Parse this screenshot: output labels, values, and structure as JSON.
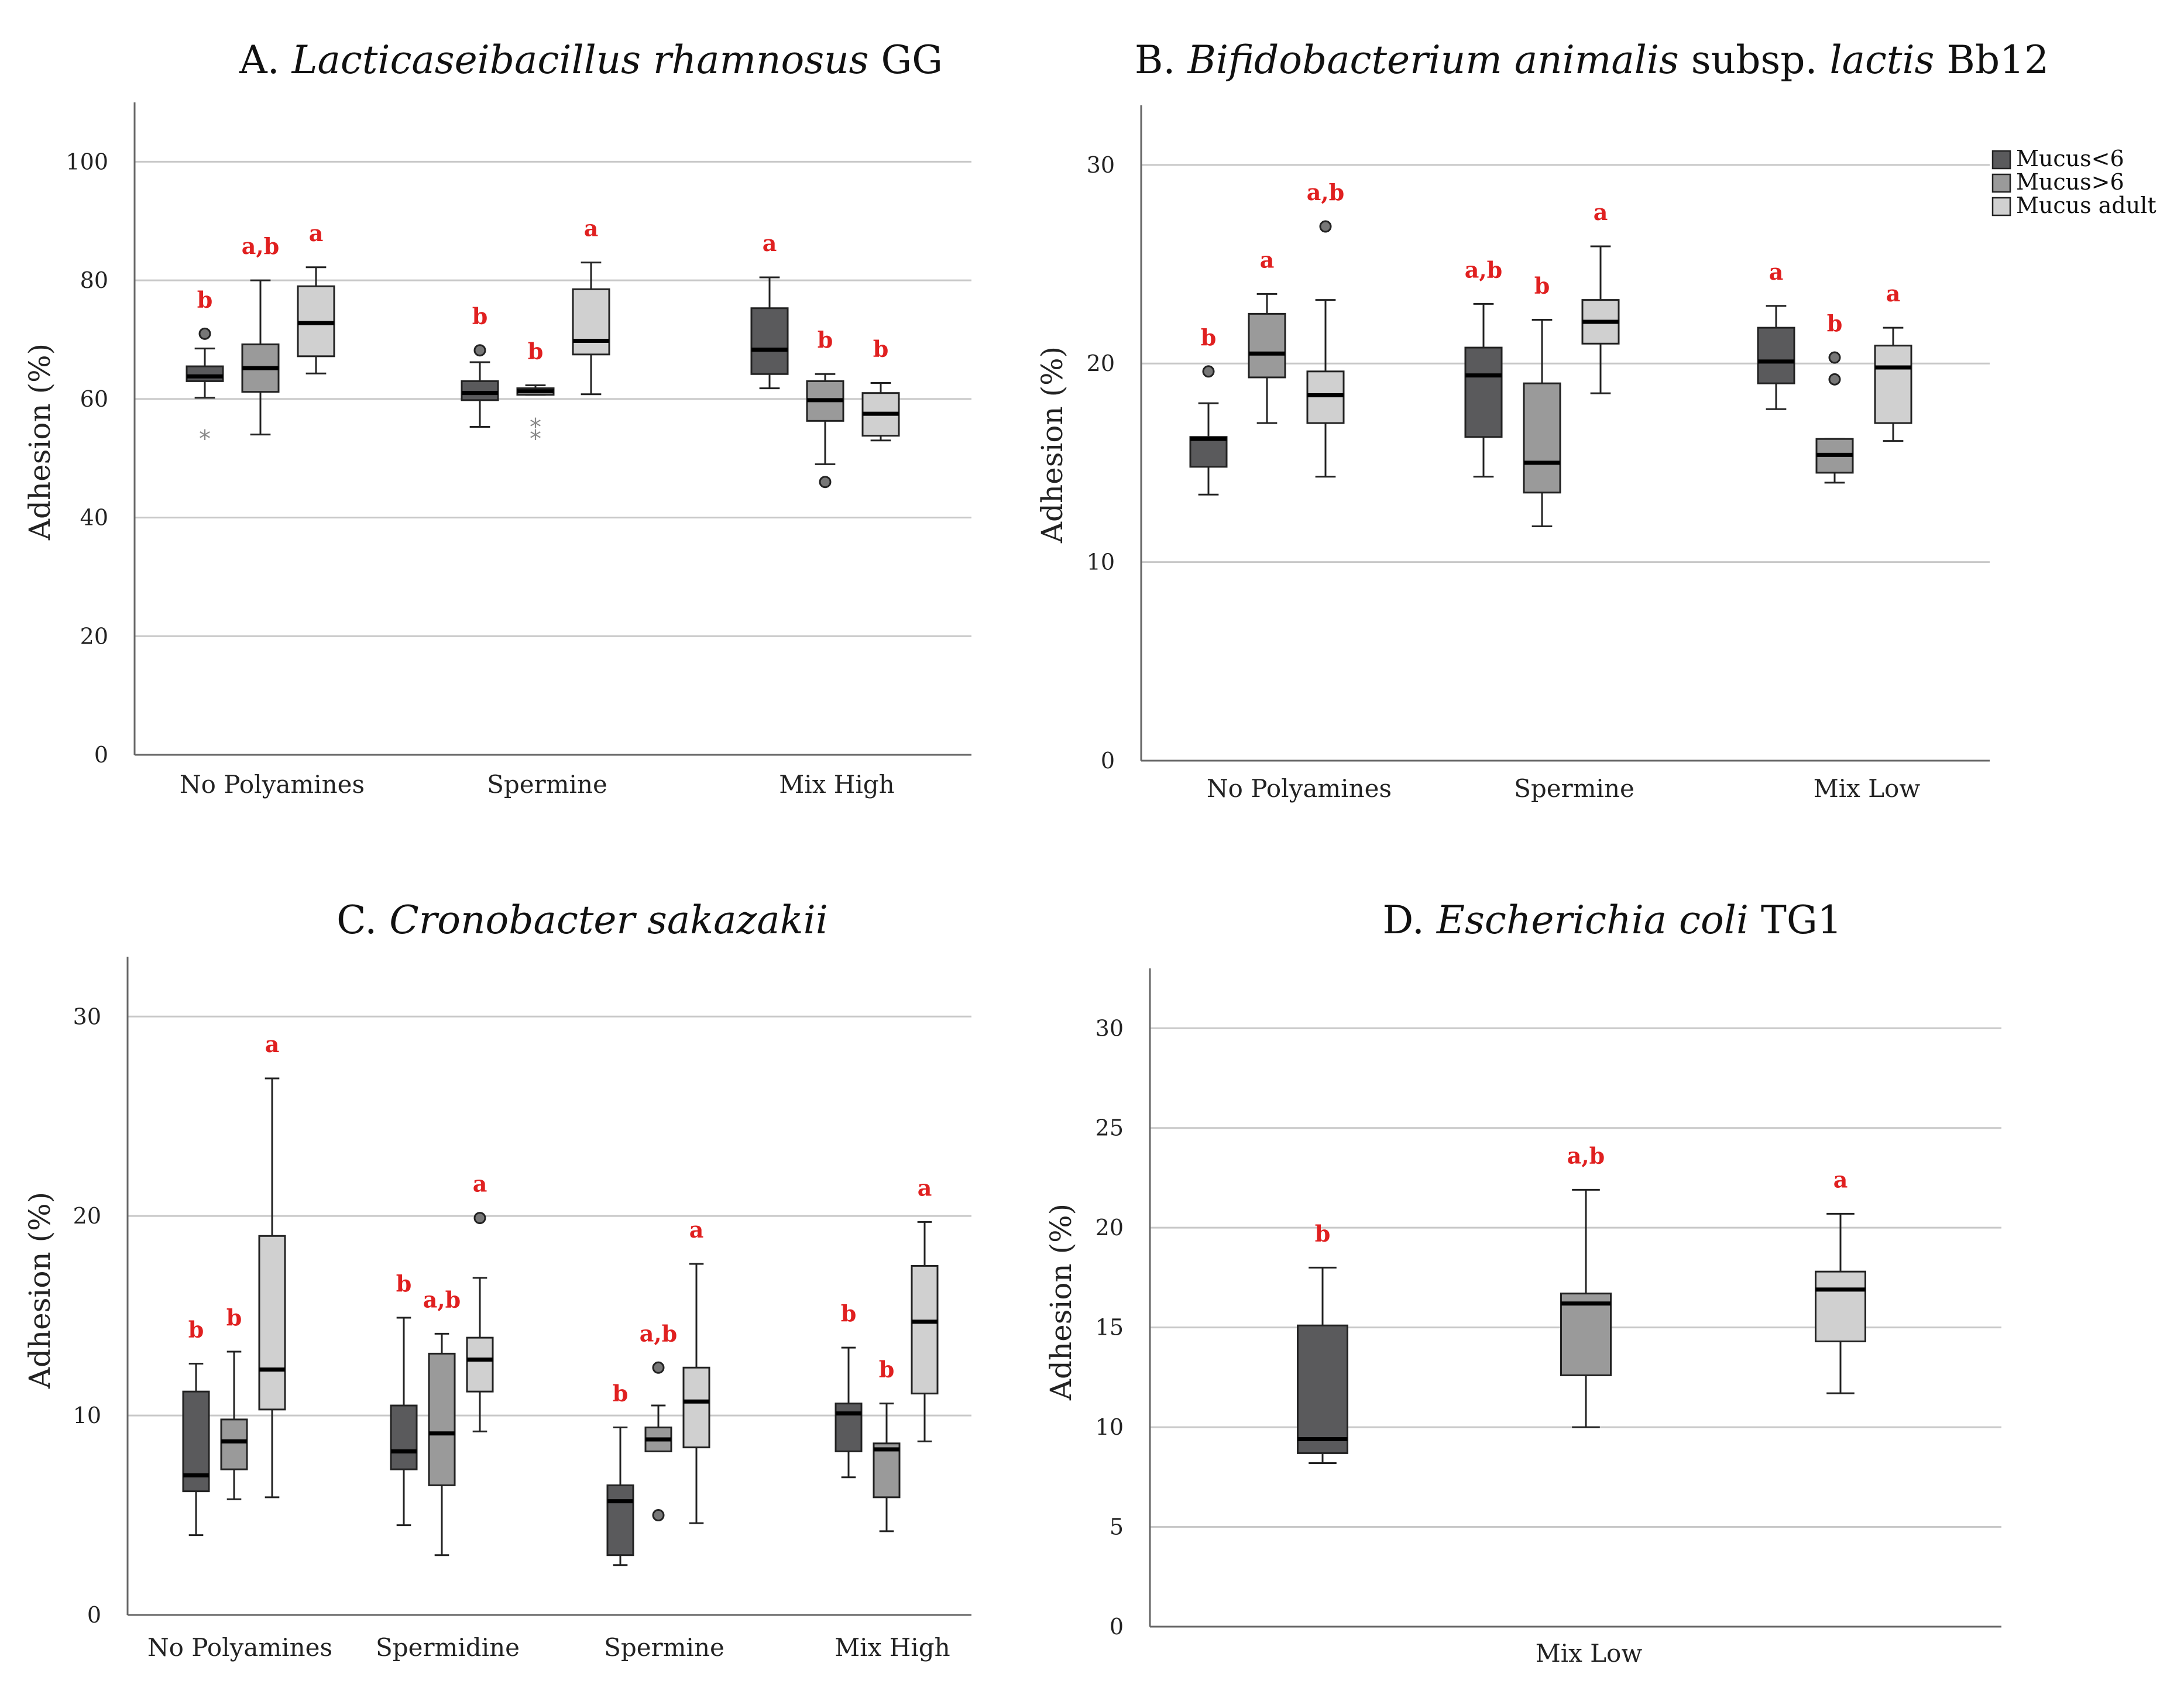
{
  "figure": {
    "colors": {
      "Mucus<6": "#5a5a5c",
      "Mucus>6": "#9a9a9a",
      "Mucus adult": "#d0d0d0",
      "grid": "#c8c8c8",
      "axis": "#666666",
      "sig": "#e02020"
    },
    "legend": [
      {
        "label": "Mucus<6",
        "key": "Mucus<6"
      },
      {
        "label": "Mucus>6",
        "key": "Mucus>6"
      },
      {
        "label": "Mucus adult",
        "key": "Mucus adult"
      }
    ]
  },
  "chart_data": [
    {
      "id": "A",
      "type": "box",
      "title_prefix": "A. ",
      "title_italic": "Lacticaseibacillus rhamnosus",
      "title_suffix": " GG",
      "ylabel": "Adhesion (%)",
      "ylim": [
        0,
        110
      ],
      "yticks": [
        0,
        20,
        40,
        60,
        80,
        100
      ],
      "categories": [
        "No Polyamines",
        "Spermine",
        "Mix High"
      ],
      "groups": [
        {
          "category": "No Polyamines",
          "series": "Mucus<6",
          "min": 60.2,
          "q1": 63.0,
          "median": 63.8,
          "q3": 65.5,
          "max": 68.5,
          "outliers": [
            71.0
          ],
          "extremes": [
            53.5
          ],
          "label": "b"
        },
        {
          "category": "No Polyamines",
          "series": "Mucus>6",
          "min": 54.0,
          "q1": 61.2,
          "median": 65.2,
          "q3": 69.2,
          "max": 80.0,
          "outliers": [],
          "extremes": [],
          "label": "a,b"
        },
        {
          "category": "No Polyamines",
          "series": "Mucus adult",
          "min": 64.3,
          "q1": 67.2,
          "median": 72.8,
          "q3": 79.0,
          "max": 82.2,
          "outliers": [],
          "extremes": [],
          "label": "a"
        },
        {
          "category": "Spermine",
          "series": "Mucus<6",
          "min": 55.3,
          "q1": 59.8,
          "median": 61.0,
          "q3": 63.0,
          "max": 66.2,
          "outliers": [
            68.2
          ],
          "extremes": [],
          "label": "b"
        },
        {
          "category": "Spermine",
          "series": "Mucus>6",
          "min": 60.7,
          "q1": 60.7,
          "median": 61.3,
          "q3": 61.8,
          "max": 62.3,
          "outliers": [],
          "extremes": [
            55.5,
            53.5
          ],
          "label": "b"
        },
        {
          "category": "Spermine",
          "series": "Mucus adult",
          "min": 60.8,
          "q1": 67.5,
          "median": 69.8,
          "q3": 78.5,
          "max": 83.0,
          "outliers": [],
          "extremes": [],
          "label": "a"
        },
        {
          "category": "Mix High",
          "series": "Mucus<6",
          "min": 61.8,
          "q1": 64.2,
          "median": 68.3,
          "q3": 75.3,
          "max": 80.5,
          "outliers": [],
          "extremes": [],
          "label": "a"
        },
        {
          "category": "Mix High",
          "series": "Mucus>6",
          "min": 49.0,
          "q1": 56.3,
          "median": 59.8,
          "q3": 63.0,
          "max": 64.2,
          "outliers": [
            46.0
          ],
          "extremes": [],
          "label": "b"
        },
        {
          "category": "Mix High",
          "series": "Mucus adult",
          "min": 53.0,
          "q1": 53.8,
          "median": 57.5,
          "q3": 61.0,
          "max": 62.7,
          "outliers": [],
          "extremes": [],
          "label": "b"
        }
      ]
    },
    {
      "id": "B",
      "type": "box",
      "title_prefix": "B. ",
      "title_italic": "Bifidobacterium animalis",
      "title_suffix": " subsp. ",
      "title_italic2": "lactis",
      "title_suffix2": " Bb12",
      "ylabel": "Adhesion (%)",
      "ylim": [
        0,
        33
      ],
      "yticks": [
        0,
        10,
        20,
        30
      ],
      "legend": true,
      "categories": [
        "No Polyamines",
        "Spermine",
        "Mix Low"
      ],
      "groups": [
        {
          "category": "No Polyamines",
          "series": "Mucus<6",
          "min": 13.4,
          "q1": 14.8,
          "median": 16.2,
          "q3": 16.3,
          "max": 18.0,
          "outliers": [
            19.6
          ],
          "extremes": [],
          "label": "b"
        },
        {
          "category": "No Polyamines",
          "series": "Mucus>6",
          "min": 17.0,
          "q1": 19.3,
          "median": 20.5,
          "q3": 22.5,
          "max": 23.5,
          "outliers": [],
          "extremes": [],
          "label": "a"
        },
        {
          "category": "No Polyamines",
          "series": "Mucus adult",
          "min": 14.3,
          "q1": 17.0,
          "median": 18.4,
          "q3": 19.6,
          "max": 23.2,
          "outliers": [
            26.9
          ],
          "extremes": [],
          "label": "a,b"
        },
        {
          "category": "Spermine",
          "series": "Mucus<6",
          "min": 14.3,
          "q1": 16.3,
          "median": 19.4,
          "q3": 20.8,
          "max": 23.0,
          "outliers": [],
          "extremes": [],
          "label": "a,b"
        },
        {
          "category": "Spermine",
          "series": "Mucus>6",
          "min": 11.8,
          "q1": 13.5,
          "median": 15.0,
          "q3": 19.0,
          "max": 22.2,
          "outliers": [],
          "extremes": [],
          "label": "b"
        },
        {
          "category": "Spermine",
          "series": "Mucus adult",
          "min": 18.5,
          "q1": 21.0,
          "median": 22.1,
          "q3": 23.2,
          "max": 25.9,
          "outliers": [],
          "extremes": [],
          "label": "a"
        },
        {
          "category": "Mix Low",
          "series": "Mucus<6",
          "min": 17.7,
          "q1": 19.0,
          "median": 20.1,
          "q3": 21.8,
          "max": 22.9,
          "outliers": [],
          "extremes": [],
          "label": "a"
        },
        {
          "category": "Mix Low",
          "series": "Mucus>6",
          "min": 14.0,
          "q1": 14.5,
          "median": 15.4,
          "q3": 16.2,
          "max": 16.2,
          "outliers": [
            20.3,
            19.2
          ],
          "extremes": [],
          "label": "b"
        },
        {
          "category": "Mix Low",
          "series": "Mucus adult",
          "min": 16.1,
          "q1": 17.0,
          "median": 19.8,
          "q3": 20.9,
          "max": 21.8,
          "outliers": [],
          "extremes": [],
          "label": "a"
        }
      ]
    },
    {
      "id": "C",
      "type": "box",
      "title_prefix": "C. ",
      "title_italic": "Cronobacter sakazakii",
      "title_suffix": "",
      "ylabel": "Adhesion (%)",
      "ylim": [
        0,
        33
      ],
      "yticks": [
        0,
        10,
        20,
        30
      ],
      "categories": [
        "No Polyamines",
        "Spermidine",
        "Spermine",
        "Mix High"
      ],
      "groups": [
        {
          "category": "No Polyamines",
          "series": "Mucus<6",
          "min": 4.0,
          "q1": 6.2,
          "median": 7.0,
          "q3": 11.2,
          "max": 12.6,
          "outliers": [],
          "extremes": [],
          "label": "b"
        },
        {
          "category": "No Polyamines",
          "series": "Mucus>6",
          "min": 5.8,
          "q1": 7.3,
          "median": 8.7,
          "q3": 9.8,
          "max": 13.2,
          "outliers": [],
          "extremes": [],
          "label": "b"
        },
        {
          "category": "No Polyamines",
          "series": "Mucus adult",
          "min": 5.9,
          "q1": 10.3,
          "median": 12.3,
          "q3": 19.0,
          "max": 26.9,
          "outliers": [],
          "extremes": [],
          "label": "a"
        },
        {
          "category": "Spermidine",
          "series": "Mucus<6",
          "min": 4.5,
          "q1": 7.3,
          "median": 8.2,
          "q3": 10.5,
          "max": 14.9,
          "outliers": [],
          "extremes": [],
          "label": "b"
        },
        {
          "category": "Spermidine",
          "series": "Mucus>6",
          "min": 3.0,
          "q1": 6.5,
          "median": 9.1,
          "q3": 13.1,
          "max": 14.1,
          "outliers": [],
          "extremes": [],
          "label": "a,b"
        },
        {
          "category": "Spermidine",
          "series": "Mucus adult",
          "min": 9.2,
          "q1": 11.2,
          "median": 12.8,
          "q3": 13.9,
          "max": 16.9,
          "outliers": [
            19.9
          ],
          "extremes": [],
          "label": "a"
        },
        {
          "category": "Spermine",
          "series": "Mucus<6",
          "min": 2.5,
          "q1": 3.0,
          "median": 5.7,
          "q3": 6.5,
          "max": 9.4,
          "outliers": [],
          "extremes": [],
          "label": "b"
        },
        {
          "category": "Spermine",
          "series": "Mucus>6",
          "min": 8.2,
          "q1": 8.2,
          "median": 8.8,
          "q3": 9.4,
          "max": 10.5,
          "outliers": [
            12.4,
            5.0
          ],
          "extremes": [],
          "label": "a,b"
        },
        {
          "category": "Spermine",
          "series": "Mucus adult",
          "min": 4.6,
          "q1": 8.4,
          "median": 10.7,
          "q3": 12.4,
          "max": 17.6,
          "outliers": [],
          "extremes": [],
          "label": "a"
        },
        {
          "category": "Mix High",
          "series": "Mucus<6",
          "min": 6.9,
          "q1": 8.2,
          "median": 10.1,
          "q3": 10.6,
          "max": 13.4,
          "outliers": [],
          "extremes": [],
          "label": "b"
        },
        {
          "category": "Mix High",
          "series": "Mucus>6",
          "min": 4.2,
          "q1": 5.9,
          "median": 8.3,
          "q3": 8.6,
          "max": 10.6,
          "outliers": [],
          "extremes": [],
          "label": "b"
        },
        {
          "category": "Mix High",
          "series": "Mucus adult",
          "min": 8.7,
          "q1": 11.1,
          "median": 14.7,
          "q3": 17.5,
          "max": 19.7,
          "outliers": [],
          "extremes": [],
          "label": "a"
        }
      ]
    },
    {
      "id": "D",
      "type": "box",
      "title_prefix": "D. ",
      "title_italic": "Escherichia coli",
      "title_suffix": " TG1",
      "ylabel": "Adhesion (%)",
      "ylim": [
        0,
        33
      ],
      "yticks": [
        0,
        5,
        10,
        15,
        20,
        25,
        30
      ],
      "categories": [
        "Mix Low"
      ],
      "groups": [
        {
          "category": "Mix Low",
          "series": "Mucus<6",
          "min": 8.2,
          "q1": 8.7,
          "median": 9.4,
          "q3": 15.1,
          "max": 18.0,
          "outliers": [],
          "extremes": [],
          "label": "b"
        },
        {
          "category": "Mix Low",
          "series": "Mucus>6",
          "min": 10.0,
          "q1": 12.6,
          "median": 16.2,
          "q3": 16.7,
          "max": 21.9,
          "outliers": [],
          "extremes": [],
          "label": "a,b"
        },
        {
          "category": "Mix Low",
          "series": "Mucus adult",
          "min": 11.7,
          "q1": 14.3,
          "median": 16.9,
          "q3": 17.8,
          "max": 20.7,
          "outliers": [],
          "extremes": [],
          "label": "a"
        }
      ]
    }
  ]
}
